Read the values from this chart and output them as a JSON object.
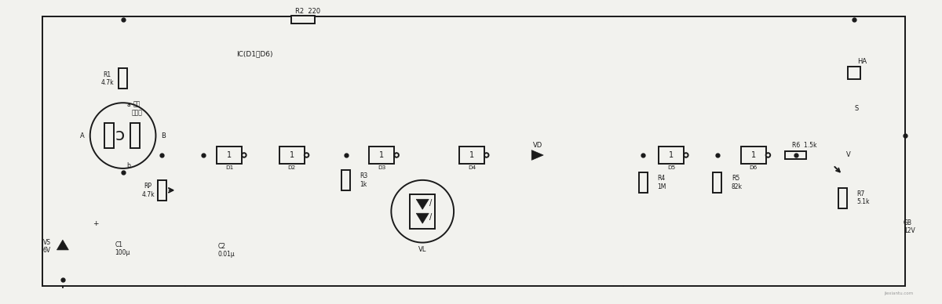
{
  "bg_color": "#f2f2ee",
  "lc": "#1a1a1a",
  "lw": 1.4,
  "labels": {
    "R1": "R1\n4.7k",
    "R2": "R2  220",
    "R3": "R3\n1k",
    "R4": "R4\n1M",
    "R5": "R5\n82k",
    "R6": "R6  1.5k",
    "R7": "R7\n5.1k",
    "RP": "RP\n4.7k",
    "C1": "C1\n100μ",
    "C2": "C2\n0.01μ",
    "VS": "VS\n6V",
    "GB": "GB\n12V",
    "HA": "HA",
    "VD": "VD",
    "VL": "VL",
    "IC": "IC(D1～D6)",
    "sensor": "气敏\n传感器",
    "D1": "D1",
    "D2": "D2",
    "D3": "D3",
    "D4": "D4",
    "D5": "D5",
    "D6": "D6",
    "A": "A",
    "B": "B",
    "a": "a",
    "b": "b",
    "V": "V",
    "S": "S",
    "plus": "+"
  },
  "watermark": "jiexiantu.com"
}
